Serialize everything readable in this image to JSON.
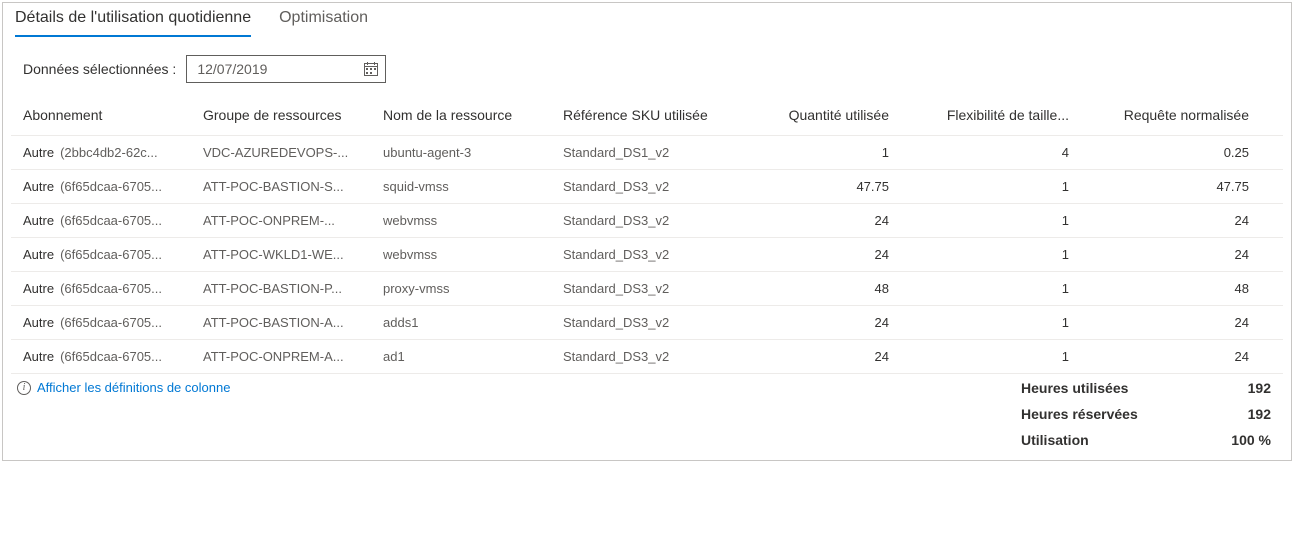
{
  "tabs": {
    "t0": "Détails de l'utilisation quotidienne",
    "t1": "Optimisation"
  },
  "date": {
    "label": "Données sélectionnées :",
    "value": "12/07/2019"
  },
  "table": {
    "headers": {
      "c0": "Abonnement",
      "c1": "Groupe de ressources",
      "c2": "Nom de la ressource",
      "c3": "Référence SKU utilisée",
      "c4": "Quantité utilisée",
      "c5": "Flexibilité de taille...",
      "c6": "Requête normalisée"
    },
    "rows": [
      {
        "sub_main": "Autre",
        "sub_id": "(2bbc4db2-62c...",
        "rg": "VDC-AZUREDEVOPS-...",
        "res": "ubuntu-agent-3",
        "sku": "Standard_DS1_v2",
        "qty": "1",
        "flex": "4",
        "norm": "0.25"
      },
      {
        "sub_main": "Autre",
        "sub_id": "(6f65dcaa-6705...",
        "rg": "ATT-POC-BASTION-S...",
        "res": "squid-vmss",
        "sku": "Standard_DS3_v2",
        "qty": "47.75",
        "flex": "1",
        "norm": "47.75"
      },
      {
        "sub_main": "Autre",
        "sub_id": "(6f65dcaa-6705...",
        "rg": "ATT-POC-ONPREM-...",
        "res": "webvmss",
        "sku": "Standard_DS3_v2",
        "qty": "24",
        "flex": "1",
        "norm": "24"
      },
      {
        "sub_main": "Autre",
        "sub_id": "(6f65dcaa-6705...",
        "rg": "ATT-POC-WKLD1-WE...",
        "res": "webvmss",
        "sku": "Standard_DS3_v2",
        "qty": "24",
        "flex": "1",
        "norm": "24"
      },
      {
        "sub_main": "Autre",
        "sub_id": "(6f65dcaa-6705...",
        "rg": "ATT-POC-BASTION-P...",
        "res": "proxy-vmss",
        "sku": "Standard_DS3_v2",
        "qty": "48",
        "flex": "1",
        "norm": "48"
      },
      {
        "sub_main": "Autre",
        "sub_id": "(6f65dcaa-6705...",
        "rg": "ATT-POC-BASTION-A...",
        "res": "adds1",
        "sku": "Standard_DS3_v2",
        "qty": "24",
        "flex": "1",
        "norm": "24"
      },
      {
        "sub_main": "Autre",
        "sub_id": "(6f65dcaa-6705...",
        "rg": "ATT-POC-ONPREM-A...",
        "res": "ad1",
        "sku": "Standard_DS3_v2",
        "qty": "24",
        "flex": "1",
        "norm": "24"
      }
    ]
  },
  "footer_link": "Afficher les définitions de colonne",
  "summary": {
    "used_label": "Heures utilisées",
    "used_val": "192",
    "reserved_label": "Heures réservées",
    "reserved_val": "192",
    "util_label": "Utilisation",
    "util_val": "100 %"
  },
  "colors": {
    "accent": "#0078d4",
    "border": "#c8c6c4",
    "row_border": "#edebe9",
    "text": "#323130",
    "muted": "#605e5c"
  }
}
